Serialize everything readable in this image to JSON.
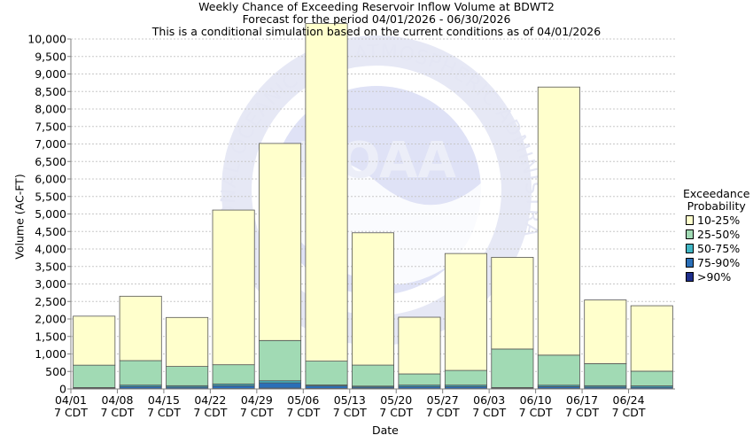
{
  "chart_data": {
    "type": "bar",
    "stacked": true,
    "title": "Weekly Chance of Exceeding Reservoir Inflow Volume at BDWT2",
    "subtitle_lines": [
      "Forecast for the period 04/01/2026 - 06/30/2026",
      "This is a conditional simulation based on the current conditions as of 04/01/2026"
    ],
    "xlabel": "Date",
    "ylabel": "Volume (AC-FT)",
    "ylim": [
      0,
      10000
    ],
    "ytick_step": 500,
    "grid": true,
    "categories": [
      "04/01",
      "04/08",
      "04/15",
      "04/22",
      "04/29",
      "05/06",
      "05/13",
      "05/20",
      "05/27",
      "06/03",
      "06/10",
      "06/17",
      "06/24"
    ],
    "tick_sublabel": "7 CDT",
    "legend_title_lines": [
      "Exceedance",
      "Probability"
    ],
    "legend_position": "right",
    "series": [
      {
        "name": ">90%",
        "color": "#1f2f8c",
        "values": [
          5,
          10,
          8,
          12,
          25,
          15,
          12,
          10,
          10,
          6,
          12,
          8,
          8
        ]
      },
      {
        "name": "75-90%",
        "color": "#2a6fb8",
        "values": [
          15,
          60,
          45,
          80,
          150,
          70,
          40,
          60,
          60,
          15,
          55,
          45,
          40
        ]
      },
      {
        "name": "50-75%",
        "color": "#41b6c4",
        "values": [
          20,
          40,
          40,
          50,
          60,
          30,
          30,
          40,
          40,
          20,
          40,
          40,
          40
        ]
      },
      {
        "name": "25-50%",
        "color": "#a1dab4",
        "values": [
          640,
          700,
          550,
          550,
          1150,
          680,
          600,
          320,
          420,
          1100,
          860,
          630,
          420
        ]
      },
      {
        "name": "10-25%",
        "color": "#ffffcc",
        "values": [
          1400,
          1840,
          1400,
          4420,
          5630,
          9650,
          3780,
          1620,
          3340,
          2620,
          7660,
          1820,
          1870
        ]
      }
    ],
    "watermark_text": "NATIONAL OCEANIC AND ATMOSPHERIC ADMINISTRATION",
    "watermark_logo_text": "NOAA"
  }
}
